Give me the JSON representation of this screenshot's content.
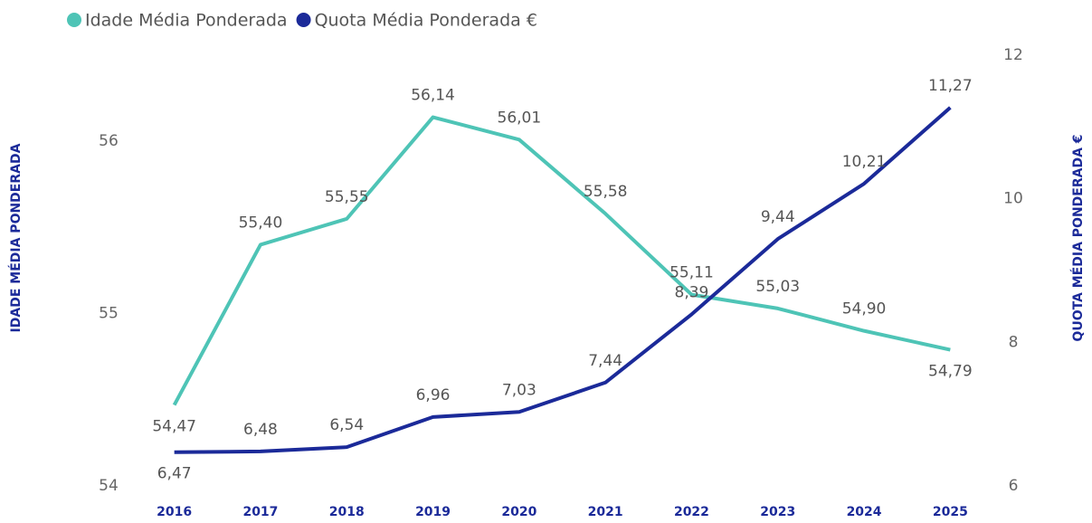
{
  "chart_data": {
    "type": "line",
    "categories": [
      "2016",
      "2017",
      "2018",
      "2019",
      "2020",
      "2021",
      "2022",
      "2023",
      "2024",
      "2025"
    ],
    "series": [
      {
        "name": "Idade Média Ponderada",
        "color": "#4ec4b6",
        "axis": "y",
        "values": [
          54.47,
          55.4,
          55.55,
          56.14,
          56.01,
          55.58,
          55.11,
          55.03,
          54.9,
          54.79
        ],
        "value_labels": [
          "54,47",
          "55,40",
          "55,55",
          "56,14",
          "56,01",
          "55,58",
          "55,11",
          "55,03",
          "54,90",
          "54,79"
        ]
      },
      {
        "name": "Quota Média Ponderada €",
        "color": "#1b2a99",
        "axis": "y2",
        "values": [
          6.47,
          6.48,
          6.54,
          6.96,
          7.03,
          7.44,
          8.39,
          9.44,
          10.21,
          11.27
        ],
        "value_labels": [
          "6,47",
          "6,48",
          "6,54",
          "6,96",
          "7,03",
          "7,44",
          "8,39",
          "9,44",
          "10,21",
          "11,27"
        ]
      }
    ],
    "ylabel": "IDADE MÉDIA PONDERADA",
    "y2label": "QUOTA MÉDIA PONDERADA €",
    "ylim": [
      54,
      56.5
    ],
    "yticks": [
      54,
      55,
      56
    ],
    "y2lim": [
      6,
      12
    ],
    "y2ticks": [
      6,
      8,
      10,
      12
    ],
    "legend": "top-left",
    "grid": false
  }
}
